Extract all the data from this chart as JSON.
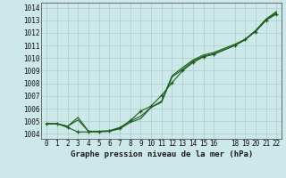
{
  "title": "Graphe pression niveau de la mer (hPa)",
  "background_color": "#cce8e8",
  "grid_color": "#aacece",
  "line_color": "#1a5c1a",
  "marker_color": "#1a5c1a",
  "xlim": [
    -0.5,
    22.5
  ],
  "ylim": [
    1003.6,
    1014.4
  ],
  "yticks": [
    1004,
    1005,
    1006,
    1007,
    1008,
    1009,
    1010,
    1011,
    1012,
    1013,
    1014
  ],
  "xticks": [
    0,
    1,
    2,
    3,
    4,
    5,
    6,
    7,
    8,
    9,
    10,
    11,
    12,
    13,
    14,
    15,
    16,
    18,
    19,
    20,
    21,
    22
  ],
  "x_values": [
    0,
    1,
    2,
    3,
    4,
    5,
    6,
    7,
    8,
    9,
    10,
    11,
    12,
    13,
    14,
    15,
    16,
    18,
    19,
    20,
    21,
    22
  ],
  "series": [
    [
      1004.8,
      1004.8,
      1004.6,
      1005.1,
      1004.2,
      1004.2,
      1004.25,
      1004.5,
      1005.0,
      1005.4,
      1006.1,
      1006.6,
      1008.6,
      1009.25,
      1009.85,
      1010.25,
      1010.45,
      1011.1,
      1011.5,
      1012.2,
      1013.1,
      1013.7
    ],
    [
      1004.8,
      1004.8,
      1004.6,
      1005.3,
      1004.2,
      1004.2,
      1004.2,
      1004.4,
      1004.9,
      1005.2,
      1006.1,
      1006.5,
      1008.5,
      1009.1,
      1009.75,
      1010.15,
      1010.35,
      1011.0,
      1011.45,
      1012.15,
      1013.05,
      1013.6
    ],
    [
      1004.8,
      1004.8,
      1004.5,
      1004.15,
      1004.15,
      1004.15,
      1004.2,
      1004.45,
      1005.05,
      1005.8,
      1006.2,
      1007.05,
      1008.05,
      1009.0,
      1009.65,
      1010.1,
      1010.3,
      1011.0,
      1011.5,
      1012.1,
      1013.0,
      1013.5
    ]
  ],
  "marker_series_idx": 2
}
